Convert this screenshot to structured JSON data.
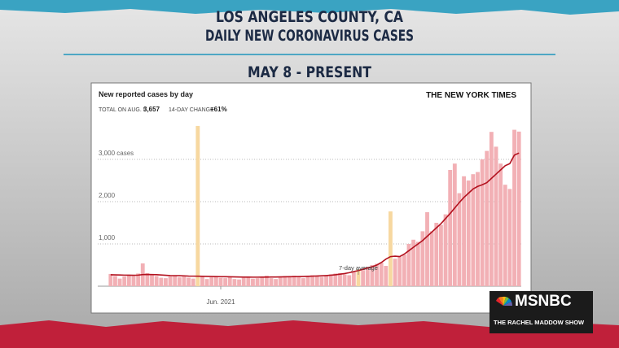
{
  "header": {
    "line1": "LOS ANGELES COUNTY, CA",
    "line2": "DAILY NEW CORONAVIRUS CASES",
    "date_range": "MAY 8 - PRESENT"
  },
  "branding": {
    "network": "MSNBC",
    "show": "THE RACHEL MADDOW SHOW"
  },
  "chart_data": {
    "type": "bar",
    "title": "New reported cases by day",
    "source": "THE NEW YORK TIMES",
    "total_label": "TOTAL ON AUG. 5",
    "total": "3,657",
    "change_label": "14-DAY CHANGE",
    "change": "+61%",
    "categories": [
      null,
      null,
      null,
      null,
      null,
      null,
      null,
      null,
      null,
      null,
      null,
      null,
      null,
      null,
      null,
      null,
      null,
      null,
      null,
      null,
      null,
      null,
      null,
      null,
      "Jun. 2021",
      null,
      null,
      null,
      null,
      null,
      null,
      null,
      null,
      null,
      null,
      null,
      null,
      null,
      null,
      null,
      null,
      null,
      null,
      null,
      null,
      null,
      null,
      null,
      null,
      null,
      null,
      null,
      null,
      null,
      null,
      null,
      null,
      null,
      null,
      null,
      null,
      null,
      null,
      null,
      null,
      null,
      null,
      null,
      null,
      null,
      null,
      null,
      null,
      null,
      null,
      null,
      null,
      null,
      null,
      null,
      null,
      null,
      null,
      null,
      null,
      null,
      null,
      null,
      null,
      null
    ],
    "series": [
      {
        "color": "#f2b0b5",
        "colors": [
          "#f2b0b5",
          "#f2b0b5",
          "#f2b0b5",
          "#f2b0b5",
          "#f2b0b5",
          "#f2b0b5",
          "#f2b0b5",
          "#f2b0b5",
          "#f2b0b5",
          "#f2b0b5",
          "#f2b0b5",
          "#f2b0b5",
          "#f2b0b5",
          "#f2b0b5",
          "#f2b0b5",
          "#f2b0b5",
          "#f2b0b5",
          "#f2b0b5",
          "#f2b0b5",
          "#f7d8a0",
          "#f2b0b5",
          "#f2b0b5",
          "#f2b0b5",
          "#f2b0b5",
          "#f2b0b5",
          "#f2b0b5",
          "#f2b0b5",
          "#f2b0b5",
          "#f2b0b5",
          "#f2b0b5",
          "#f2b0b5",
          "#f2b0b5",
          "#f2b0b5",
          "#f2b0b5",
          "#f2b0b5",
          "#f2b0b5",
          "#f2b0b5",
          "#f2b0b5",
          "#f2b0b5",
          "#f2b0b5",
          "#f2b0b5",
          "#f2b0b5",
          "#f2b0b5",
          "#f2b0b5",
          "#f2b0b5",
          "#f2b0b5",
          "#f2b0b5",
          "#f2b0b5",
          "#f2b0b5",
          "#f2b0b5",
          "#f2b0b5",
          "#f2b0b5",
          "#f2b0b5",
          "#f2b0b5",
          "#f7d8a0",
          "#f2b0b5",
          "#f2b0b5",
          "#f2b0b5",
          "#f2b0b5",
          "#f2b0b5",
          "#f2b0b5",
          "#f7d8a0",
          "#f2b0b5",
          "#f2b0b5",
          "#f2b0b5",
          "#f2b0b5",
          "#f2b0b5",
          "#f2b0b5",
          "#f2b0b5",
          "#f2b0b5",
          "#f2b0b5",
          "#f2b0b5",
          "#f2b0b5",
          "#f2b0b5",
          "#f2b0b5",
          "#f2b0b5",
          "#f2b0b5",
          "#f2b0b5",
          "#f2b0b5",
          "#f2b0b5",
          "#f2b0b5",
          "#f2b0b5",
          "#f2b0b5",
          "#f2b0b5",
          "#f2b0b5",
          "#f2b0b5",
          "#f2b0b5",
          "#f2b0b5",
          "#f2b0b5",
          "#f2b0b5"
        ],
        "values": [
          290,
          240,
          180,
          230,
          260,
          240,
          300,
          540,
          310,
          260,
          240,
          200,
          190,
          230,
          260,
          210,
          230,
          200,
          180,
          3790,
          230,
          170,
          210,
          240,
          200,
          190,
          220,
          170,
          160,
          200,
          230,
          180,
          190,
          210,
          250,
          190,
          170,
          220,
          240,
          230,
          250,
          210,
          190,
          230,
          260,
          240,
          220,
          260,
          280,
          300,
          310,
          280,
          260,
          330,
          400,
          380,
          460,
          500,
          530,
          560,
          480,
          1770,
          650,
          700,
          750,
          1000,
          1100,
          1050,
          1300,
          1750,
          1300,
          1500,
          1450,
          1700,
          2750,
          2900,
          2200,
          2600,
          2500,
          2650,
          2700,
          3000,
          3200,
          3650,
          3300,
          2900,
          2400,
          2300,
          3700,
          3657
        ]
      },
      {
        "name": "7-day average",
        "type": "line",
        "color": "#b3121f",
        "values": [
          270,
          268,
          265,
          262,
          260,
          258,
          262,
          275,
          278,
          276,
          272,
          265,
          258,
          252,
          250,
          248,
          245,
          240,
          238,
          236,
          235,
          232,
          230,
          228,
          226,
          224,
          222,
          220,
          218,
          216,
          215,
          214,
          214,
          215,
          216,
          217,
          218,
          220,
          222,
          224,
          226,
          228,
          230,
          234,
          238,
          242,
          246,
          252,
          260,
          270,
          285,
          300,
          320,
          345,
          370,
          400,
          430,
          460,
          500,
          560,
          640,
          700,
          710,
          700,
          760,
          840,
          920,
          1000,
          1080,
          1180,
          1280,
          1380,
          1480,
          1600,
          1720,
          1850,
          1980,
          2100,
          2200,
          2300,
          2360,
          2400,
          2450,
          2550,
          2650,
          2750,
          2850,
          2900,
          3100,
          3150
        ]
      }
    ],
    "ylim": [
      0,
      4000
    ],
    "yticks": [
      {
        "value": 1000,
        "label": "1,000"
      },
      {
        "value": 2000,
        "label": "2,000"
      },
      {
        "value": 3000,
        "label": "3,000 cases"
      }
    ],
    "grid": true
  }
}
